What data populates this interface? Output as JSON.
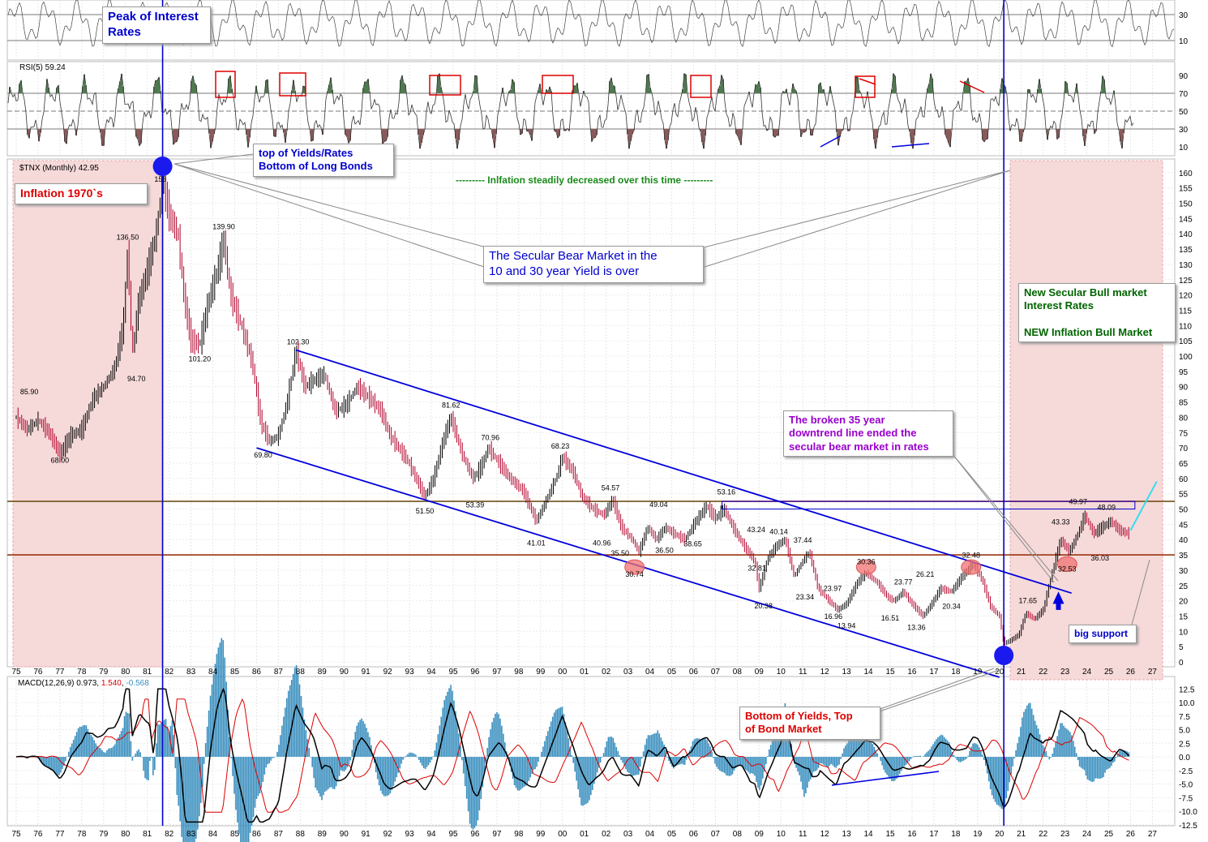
{
  "colors": {
    "blue_annotation": "#0000cc",
    "red_annotation": "#dd0000",
    "green_annotation": "#006400",
    "purple_annotation": "#9900cc",
    "candle": "#b0002a",
    "macd_line": "#000000",
    "macd_signal": "#dd0000",
    "macd_hist": "#3a8fbf",
    "rsi_over": "#4f7a4f",
    "rsi_under": "#8a5a5a",
    "shade": "#f6d9d9"
  },
  "rsi": {
    "label": "RSI(5) 59.24",
    "ticks": [
      90,
      70,
      50,
      30,
      10
    ]
  },
  "top_panel": {
    "ticks": [
      30,
      10
    ]
  },
  "price": {
    "label": "$TNX (Monthly) 42.95",
    "ticks": [
      160,
      155,
      150,
      145,
      140,
      135,
      130,
      125,
      120,
      115,
      110,
      105,
      100,
      95,
      90,
      85,
      80,
      75,
      70,
      65,
      60,
      55,
      50,
      45,
      40,
      35,
      30,
      25,
      20,
      15,
      10,
      5,
      0
    ]
  },
  "macd": {
    "label_prefix": "MACD(12,26,9)",
    "value": "0.973",
    "signal": "1.540",
    "hist": "-0.568",
    "ticks": [
      "12.5",
      "10.0",
      "7.5",
      "5.0",
      "2.5",
      "0.0",
      "-2.5",
      "-5.0",
      "-7.5",
      "-10.0",
      "-12.5"
    ]
  },
  "x_axis": [
    "75",
    "76",
    "77",
    "78",
    "79",
    "80",
    "81",
    "82",
    "83",
    "84",
    "85",
    "86",
    "87",
    "88",
    "89",
    "90",
    "91",
    "92",
    "93",
    "94",
    "95",
    "96",
    "97",
    "98",
    "99",
    "00",
    "01",
    "02",
    "03",
    "04",
    "05",
    "06",
    "07",
    "08",
    "09",
    "10",
    "11",
    "12",
    "13",
    "14",
    "15",
    "16",
    "17",
    "18",
    "19",
    "20",
    "21",
    "22",
    "23",
    "24",
    "25",
    "26",
    "27"
  ],
  "annotations": {
    "peak_rates": "Peak of Interest\nRates",
    "top_yields": "top of Yields/Rates\nBottom of Long Bonds",
    "inflation_70s": "Inflation 1970`s",
    "inflation_decreased": "--------- Inlfation steadily decreased over this time ---------",
    "secular_bear": "The Secular Bear Market in the\n10 and 30 year Yield is over",
    "new_bull": "New Secular Bull market\nInterest Rates\n\nNEW Inflation Bull Market",
    "broken_line": "The broken 35 year\ndowntrend line ended the\nsecular bear market in rates",
    "big_support": "big support",
    "bottom_yields": "Bottom of Yields, Top\nof Bond Market"
  },
  "chart_data": {
    "type": "candlestick",
    "title": "",
    "series_name": "$TNX (Monthly)",
    "last_value": 42.95,
    "ylim": [
      0,
      163
    ],
    "xlim": [
      1975,
      2027
    ],
    "path": [
      [
        1975.0,
        80
      ],
      [
        1975.5,
        76
      ],
      [
        1976.0,
        79
      ],
      [
        1976.5,
        75
      ],
      [
        1977.0,
        68
      ],
      [
        1977.5,
        74
      ],
      [
        1978.0,
        76
      ],
      [
        1978.5,
        86
      ],
      [
        1979.0,
        90
      ],
      [
        1979.5,
        96
      ],
      [
        1979.9,
        110
      ],
      [
        1980.1,
        136
      ],
      [
        1980.3,
        100
      ],
      [
        1980.6,
        118
      ],
      [
        1981.0,
        128
      ],
      [
        1981.4,
        140
      ],
      [
        1981.7,
        158
      ],
      [
        1982.0,
        146
      ],
      [
        1982.4,
        140
      ],
      [
        1982.7,
        118
      ],
      [
        1983.0,
        105
      ],
      [
        1983.4,
        104
      ],
      [
        1983.8,
        118
      ],
      [
        1984.2,
        128
      ],
      [
        1984.5,
        138
      ],
      [
        1984.8,
        120
      ],
      [
        1985.3,
        110
      ],
      [
        1985.8,
        98
      ],
      [
        1986.2,
        78
      ],
      [
        1986.6,
        72
      ],
      [
        1987.0,
        74
      ],
      [
        1987.4,
        85
      ],
      [
        1987.8,
        102
      ],
      [
        1988.2,
        90
      ],
      [
        1988.6,
        92
      ],
      [
        1989.1,
        94
      ],
      [
        1989.6,
        82
      ],
      [
        1990.1,
        84
      ],
      [
        1990.6,
        90
      ],
      [
        1991.2,
        86
      ],
      [
        1991.7,
        82
      ],
      [
        1992.1,
        74
      ],
      [
        1992.5,
        70
      ],
      [
        1992.9,
        66
      ],
      [
        1993.3,
        60
      ],
      [
        1993.7,
        54
      ],
      [
        1994.1,
        60
      ],
      [
        1994.6,
        74
      ],
      [
        1994.9,
        80
      ],
      [
        1995.4,
        68
      ],
      [
        1995.9,
        60
      ],
      [
        1996.3,
        64
      ],
      [
        1996.6,
        70
      ],
      [
        1997.0,
        66
      ],
      [
        1997.6,
        60
      ],
      [
        1998.2,
        56
      ],
      [
        1998.8,
        46
      ],
      [
        1999.2,
        52
      ],
      [
        1999.7,
        60
      ],
      [
        2000.0,
        67
      ],
      [
        2000.5,
        62
      ],
      [
        2000.9,
        54
      ],
      [
        2001.4,
        50
      ],
      [
        2001.9,
        48
      ],
      [
        2002.3,
        53
      ],
      [
        2002.7,
        44
      ],
      [
        2003.2,
        40
      ],
      [
        2003.5,
        36
      ],
      [
        2003.9,
        44
      ],
      [
        2004.3,
        40
      ],
      [
        2004.7,
        44
      ],
      [
        2005.1,
        42
      ],
      [
        2005.6,
        40
      ],
      [
        2006.1,
        46
      ],
      [
        2006.6,
        51
      ],
      [
        2007.0,
        47
      ],
      [
        2007.4,
        50
      ],
      [
        2007.8,
        44
      ],
      [
        2008.3,
        38
      ],
      [
        2008.8,
        33
      ],
      [
        2009.0,
        24
      ],
      [
        2009.4,
        34
      ],
      [
        2009.8,
        38
      ],
      [
        2010.2,
        40
      ],
      [
        2010.6,
        28
      ],
      [
        2011.0,
        33
      ],
      [
        2011.3,
        36
      ],
      [
        2011.7,
        24
      ],
      [
        2012.2,
        20
      ],
      [
        2012.6,
        17
      ],
      [
        2013.0,
        19
      ],
      [
        2013.5,
        26
      ],
      [
        2013.9,
        29
      ],
      [
        2014.4,
        26
      ],
      [
        2014.9,
        21
      ],
      [
        2015.2,
        20
      ],
      [
        2015.6,
        23
      ],
      [
        2016.0,
        19
      ],
      [
        2016.5,
        15
      ],
      [
        2016.9,
        19
      ],
      [
        2017.3,
        24
      ],
      [
        2017.8,
        23
      ],
      [
        2018.3,
        28
      ],
      [
        2018.8,
        32
      ],
      [
        2019.2,
        27
      ],
      [
        2019.6,
        18
      ],
      [
        2020.0,
        15
      ],
      [
        2020.2,
        6
      ],
      [
        2020.5,
        7
      ],
      [
        2020.9,
        9
      ],
      [
        2021.2,
        16
      ],
      [
        2021.6,
        14
      ],
      [
        2022.0,
        17
      ],
      [
        2022.4,
        29
      ],
      [
        2022.8,
        40
      ],
      [
        2023.2,
        36
      ],
      [
        2023.6,
        42
      ],
      [
        2023.9,
        48
      ],
      [
        2024.3,
        42
      ],
      [
        2024.7,
        44
      ],
      [
        2025.1,
        46
      ],
      [
        2025.5,
        43
      ],
      [
        2025.9,
        42
      ]
    ],
    "labels": [
      {
        "x": 1975.6,
        "y": 85.9,
        "text": "85.90",
        "pos": "above"
      },
      {
        "x": 1977.0,
        "y": 68.0,
        "text": "68.00",
        "pos": "below"
      },
      {
        "x": 1980.1,
        "y": 136.5,
        "text": "136.50",
        "pos": "above"
      },
      {
        "x": 1980.5,
        "y": 94.7,
        "text": "94.70",
        "pos": "below"
      },
      {
        "x": 1981.6,
        "y": 160.0,
        "text": "158",
        "pos": "below"
      },
      {
        "x": 1983.4,
        "y": 101.2,
        "text": "101.20",
        "pos": "below"
      },
      {
        "x": 1984.5,
        "y": 139.9,
        "text": "139.90",
        "pos": "above"
      },
      {
        "x": 1987.9,
        "y": 102.3,
        "text": "102.30",
        "pos": "above"
      },
      {
        "x": 1986.3,
        "y": 69.8,
        "text": "69.80",
        "pos": "below"
      },
      {
        "x": 1993.7,
        "y": 51.5,
        "text": "51.50",
        "pos": "below"
      },
      {
        "x": 1994.9,
        "y": 81.62,
        "text": "81.62",
        "pos": "above"
      },
      {
        "x": 1996.0,
        "y": 53.39,
        "text": "53.39",
        "pos": "below"
      },
      {
        "x": 1996.7,
        "y": 70.96,
        "text": "70.96",
        "pos": "above"
      },
      {
        "x": 1998.8,
        "y": 41.01,
        "text": "41.01",
        "pos": "below"
      },
      {
        "x": 1999.9,
        "y": 68.23,
        "text": "68.23",
        "pos": "above"
      },
      {
        "x": 2001.8,
        "y": 40.96,
        "text": "40.96",
        "pos": "below"
      },
      {
        "x": 2002.2,
        "y": 54.57,
        "text": "54.57",
        "pos": "above"
      },
      {
        "x": 2003.2,
        "y": 35.5,
        "text": "35.50",
        "pos": "left"
      },
      {
        "x": 2003.3,
        "y": 30.74,
        "text": "30.74",
        "pos": "below"
      },
      {
        "x": 2004.1,
        "y": 36.5,
        "text": "36.50",
        "pos": "right"
      },
      {
        "x": 2004.4,
        "y": 49.04,
        "text": "49.04",
        "pos": "above"
      },
      {
        "x": 2005.4,
        "y": 38.65,
        "text": "38.65",
        "pos": "right"
      },
      {
        "x": 2007.5,
        "y": 53.16,
        "text": "53.16",
        "pos": "above"
      },
      {
        "x": 2008.3,
        "y": 43.24,
        "text": "43.24",
        "pos": "right"
      },
      {
        "x": 2008.9,
        "y": 32.81,
        "text": "32.81",
        "pos": "below"
      },
      {
        "x": 2009.9,
        "y": 40.14,
        "text": "40.14",
        "pos": "above"
      },
      {
        "x": 2009.2,
        "y": 20.38,
        "text": "20.38",
        "pos": "below"
      },
      {
        "x": 2011.0,
        "y": 37.44,
        "text": "37.44",
        "pos": "above"
      },
      {
        "x": 2011.8,
        "y": 23.97,
        "text": "23.97",
        "pos": "right"
      },
      {
        "x": 2011.1,
        "y": 23.34,
        "text": "23.34",
        "pos": "below"
      },
      {
        "x": 2012.4,
        "y": 16.96,
        "text": "16.96",
        "pos": "below"
      },
      {
        "x": 2013.0,
        "y": 13.94,
        "text": "13.94",
        "pos": "below"
      },
      {
        "x": 2013.9,
        "y": 30.36,
        "text": "30.36",
        "pos": "above"
      },
      {
        "x": 2015.6,
        "y": 23.77,
        "text": "23.77",
        "pos": "above"
      },
      {
        "x": 2015.0,
        "y": 16.51,
        "text": "16.51",
        "pos": "below"
      },
      {
        "x": 2016.6,
        "y": 26.21,
        "text": "26.21",
        "pos": "above"
      },
      {
        "x": 2016.2,
        "y": 13.36,
        "text": "13.36",
        "pos": "below"
      },
      {
        "x": 2017.8,
        "y": 20.34,
        "text": "20.34",
        "pos": "below"
      },
      {
        "x": 2018.7,
        "y": 32.48,
        "text": "32.48",
        "pos": "above"
      },
      {
        "x": 2021.3,
        "y": 17.65,
        "text": "17.65",
        "pos": "above"
      },
      {
        "x": 2022.8,
        "y": 43.33,
        "text": "43.33",
        "pos": "above"
      },
      {
        "x": 2023.1,
        "y": 32.53,
        "text": "32.53",
        "pos": "below"
      },
      {
        "x": 2023.6,
        "y": 49.97,
        "text": "49.97",
        "pos": "above"
      },
      {
        "x": 2024.9,
        "y": 48.09,
        "text": "48.09",
        "pos": "above"
      },
      {
        "x": 2024.6,
        "y": 36.03,
        "text": "36.03",
        "pos": "below"
      }
    ],
    "horizontal_lines": [
      {
        "y": 52.5,
        "color": "#dd0000"
      },
      {
        "y": 52.5,
        "color": "#2e8b2e",
        "thin": true
      },
      {
        "y": 35.0,
        "color": "#2e8b2e"
      },
      {
        "y": 35.0,
        "color": "#dd0000",
        "thin": true
      }
    ],
    "trend_lines": [
      {
        "x1": 1987.8,
        "y1": 102.0,
        "x2": 2023.3,
        "y2": 22.5,
        "color": "#0000dd"
      },
      {
        "x1": 1986.0,
        "y1": 70.0,
        "x2": 2020.0,
        "y2": -5.0,
        "color": "#0000dd"
      }
    ],
    "vertical_lines": [
      1981.7,
      2020.2
    ]
  }
}
